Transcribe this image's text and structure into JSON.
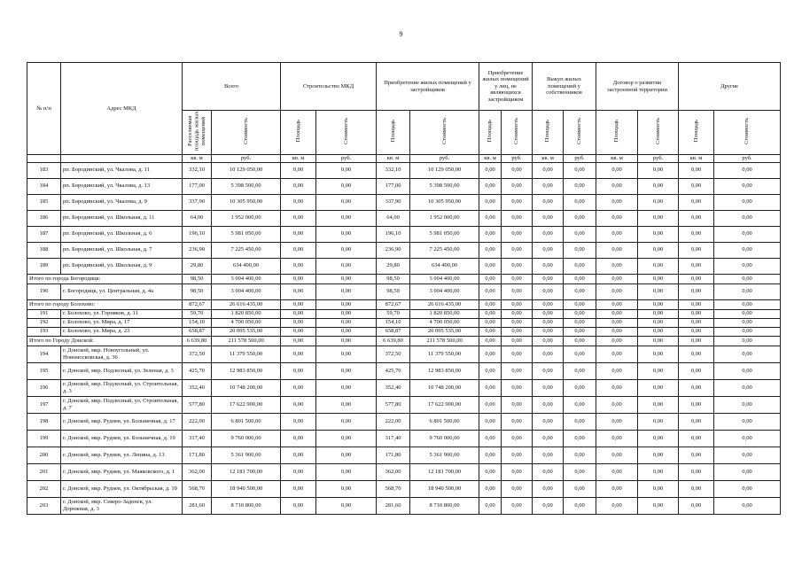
{
  "page_number": "9",
  "header": {
    "num": "№ п/п",
    "address": "Адрес МКД",
    "groups": [
      "Всего",
      "Строительство МКД",
      "Приобретение жилых помещений у застройщиков",
      "Приобретение жилых помещений у лиц, не являющихся застройщиком",
      "Выкуп жилых помещений у собственников",
      "Договор о развитии застроенной территории",
      "Другие"
    ],
    "subs": [
      "Расселяемая площадь жилых помещений",
      "Стоимость",
      "Площадь",
      "Стоимость",
      "Площадь",
      "Стоимость",
      "Площадь",
      "Стоимость",
      "Площадь",
      "Стоимость",
      "Площадь",
      "Стоимость",
      "Площадь",
      "Стоимость"
    ],
    "units": [
      "кв. м",
      "руб.",
      "кв. м",
      "руб.",
      "кв. м",
      "руб.",
      "кв. м",
      "руб.",
      "кв. м",
      "руб.",
      "кв. м",
      "руб.",
      "кв. м",
      "руб."
    ]
  },
  "table": {
    "rows": [
      {
        "num": "183",
        "address": "рп. Бородинский, ул. Чкалова, д. 11",
        "cells": [
          "332,10",
          "10 129 050,00",
          "0,00",
          "0,00",
          "332,10",
          "10 129 050,00",
          "0,00",
          "0,00",
          "0,00",
          "0,00",
          "0,00",
          "0,00",
          "0,00",
          "0,00"
        ]
      },
      {
        "num": "184",
        "address": "рп. Бородинский, ул. Чкалова, д. 13",
        "cells": [
          "177,00",
          "5 398 500,00",
          "0,00",
          "0,00",
          "177,00",
          "5 398 500,00",
          "0,00",
          "0,00",
          "0,00",
          "0,00",
          "0,00",
          "0,00",
          "0,00",
          "0,00"
        ]
      },
      {
        "num": "185",
        "address": "рп. Бородинский, ул. Чкалова, д. 9",
        "cells": [
          "337,90",
          "10 305 950,00",
          "0,00",
          "0,00",
          "337,90",
          "10 305 950,00",
          "0,00",
          "0,00",
          "0,00",
          "0,00",
          "0,00",
          "0,00",
          "0,00",
          "0,00"
        ]
      },
      {
        "num": "186",
        "address": "рп. Бородинский, ул. Школьная, д. 11",
        "cells": [
          "64,00",
          "1 952 000,00",
          "0,00",
          "0,00",
          "64,00",
          "1 952 000,00",
          "0,00",
          "0,00",
          "0,00",
          "0,00",
          "0,00",
          "0,00",
          "0,00",
          "0,00"
        ]
      },
      {
        "num": "187",
        "address": "рп. Бородинский, ул. Школьная, д. 6",
        "cells": [
          "196,10",
          "5 981 050,00",
          "0,00",
          "0,00",
          "196,10",
          "5 981 050,00",
          "0,00",
          "0,00",
          "0,00",
          "0,00",
          "0,00",
          "0,00",
          "0,00",
          "0,00"
        ]
      },
      {
        "num": "188",
        "address": "рп. Бородинский, ул. Школьная, д. 7",
        "cells": [
          "236,90",
          "7 225 450,00",
          "0,00",
          "0,00",
          "236,90",
          "7 225 450,00",
          "0,00",
          "0,00",
          "0,00",
          "0,00",
          "0,00",
          "0,00",
          "0,00",
          "0,00"
        ]
      },
      {
        "num": "189",
        "address": "рп. Бородинский, ул. Школьная, д. 9",
        "cells": [
          "29,80",
          "634 400,00",
          "0,00",
          "0,00",
          "29,80",
          "634 400,00",
          "0,00",
          "0,00",
          "0,00",
          "0,00",
          "0,00",
          "0,00",
          "0,00",
          "0,00"
        ]
      },
      {
        "label": "Итого по города Богородицк:",
        "cells": [
          "98,50",
          "3 004 400,00",
          "0,00",
          "0,00",
          "98,50",
          "3 004 400,00",
          "0,00",
          "0,00",
          "0,00",
          "0,00",
          "0,00",
          "0,00",
          "0,00",
          "0,00"
        ]
      },
      {
        "num": "190",
        "address": "г. Богородицк, ул. Центральная, д. 4а",
        "cells": [
          "98,50",
          "3 004 400,00",
          "0,00",
          "0,00",
          "98,50",
          "3 004 400,00",
          "0,00",
          "0,00",
          "0,00",
          "0,00",
          "0,00",
          "0,00",
          "0,00",
          "0,00"
        ]
      },
      {
        "label": "Итого по городу Болохово:",
        "cells": [
          "872,67",
          "26 616 435,00",
          "0,00",
          "0,00",
          "872,67",
          "26 616 435,00",
          "0,00",
          "0,00",
          "0,00",
          "0,00",
          "0,00",
          "0,00",
          "0,00",
          "0,00"
        ]
      },
      {
        "num": "191",
        "address": "г. Болохово, ул. Горняков, д. 11",
        "cells": [
          "59,70",
          "1 820 850,00",
          "0,00",
          "0,00",
          "59,70",
          "1 820 850,00",
          "0,00",
          "0,00",
          "0,00",
          "0,00",
          "0,00",
          "0,00",
          "0,00",
          "0,00"
        ]
      },
      {
        "num": "192",
        "address": "г. Болохово, ул. Мира, д. 17",
        "cells": [
          "154,10",
          "4 700 050,00",
          "0,00",
          "0,00",
          "154,10",
          "4 700 050,00",
          "0,00",
          "0,00",
          "0,00",
          "0,00",
          "0,00",
          "0,00",
          "0,00",
          "0,00"
        ]
      },
      {
        "num": "193",
        "address": "г. Болохово, ул. Мира, д. 23",
        "cells": [
          "658,87",
          "20 095 535,00",
          "0,00",
          "0,00",
          "658,87",
          "20 095 535,00",
          "0,00",
          "0,00",
          "0,00",
          "0,00",
          "0,00",
          "0,00",
          "0,00",
          "0,00"
        ]
      },
      {
        "label": "Итого по Городу Донской:",
        "cells": [
          "6 639,80",
          "211 578 500,00",
          "0,00",
          "0,00",
          "6 639,80",
          "211 578 500,00",
          "0,00",
          "0,00",
          "0,00",
          "0,00",
          "0,00",
          "0,00",
          "0,00",
          "0,00"
        ]
      },
      {
        "num": "194",
        "address": "г. Донской, мкр. Новоугольный, ул. Новомосковская, д. 36",
        "cells": [
          "372,50",
          "11 379 550,00",
          "0,00",
          "0,00",
          "372,50",
          "11 379 550,00",
          "0,00",
          "0,00",
          "0,00",
          "0,00",
          "0,00",
          "0,00",
          "0,00",
          "0,00"
        ]
      },
      {
        "num": "195",
        "address": "г. Донской, мкр. Подлесный, ул. Зеленая, д. 3",
        "cells": [
          "425,70",
          "12 983 850,00",
          "0,00",
          "0,00",
          "425,70",
          "12 983 850,00",
          "0,00",
          "0,00",
          "0,00",
          "0,00",
          "0,00",
          "0,00",
          "0,00",
          "0,00"
        ]
      },
      {
        "num": "196",
        "address": "г. Донской, мкр. Подлесный, ул. Строительная, д. 3",
        "cells": [
          "352,40",
          "10 748 200,00",
          "0,00",
          "0,00",
          "352,40",
          "10 748 200,00",
          "0,00",
          "0,00",
          "0,00",
          "0,00",
          "0,00",
          "0,00",
          "0,00",
          "0,00"
        ]
      },
      {
        "num": "197",
        "address": "г. Донской, мкр. Подлесный, ул. Строительная, д. 7",
        "cells": [
          "577,80",
          "17 622 900,00",
          "0,00",
          "0,00",
          "577,80",
          "17 622 900,00",
          "0,00",
          "0,00",
          "0,00",
          "0,00",
          "0,00",
          "0,00",
          "0,00",
          "0,00"
        ]
      },
      {
        "num": "198",
        "address": "г. Донской, мкр. Руднев, ул. Больничная, д. 17",
        "cells": [
          "222,00",
          "6 801 500,00",
          "0,00",
          "0,00",
          "222,00",
          "6 801 500,00",
          "0,00",
          "0,00",
          "0,00",
          "0,00",
          "0,00",
          "0,00",
          "0,00",
          "0,00"
        ]
      },
      {
        "num": "199",
        "address": "г. Донской, мкр. Руднев, ул. Больничная, д. 19",
        "cells": [
          "317,40",
          "9 760 000,00",
          "0,00",
          "0,00",
          "317,40",
          "9 760 000,00",
          "0,00",
          "0,00",
          "0,00",
          "0,00",
          "0,00",
          "0,00",
          "0,00",
          "0,00"
        ]
      },
      {
        "num": "200",
        "address": "г. Донской, мкр. Руднев, ул. Ленина, д. 13",
        "cells": [
          "171,80",
          "5 361 900,00",
          "0,00",
          "0,00",
          "171,80",
          "5 361 900,00",
          "0,00",
          "0,00",
          "0,00",
          "0,00",
          "0,00",
          "0,00",
          "0,00",
          "0,00"
        ]
      },
      {
        "num": "201",
        "address": "г. Донской, мкр. Руднев, ул. Маяковского, д. 1",
        "cells": [
          "362,00",
          "12 181 700,00",
          "0,00",
          "0,00",
          "362,00",
          "12 181 700,00",
          "0,00",
          "0,00",
          "0,00",
          "0,00",
          "0,00",
          "0,00",
          "0,00",
          "0,00"
        ]
      },
      {
        "num": "202",
        "address": "г. Донской, мкр. Руднев, ул. Октябрьская, д. 10",
        "cells": [
          "568,70",
          "18 940 500,00",
          "0,00",
          "0,00",
          "568,70",
          "18 940 500,00",
          "0,00",
          "0,00",
          "0,00",
          "0,00",
          "0,00",
          "0,00",
          "0,00",
          "0,00"
        ]
      },
      {
        "num": "203",
        "address": "г. Донской, мкр. Северо-Задонск, ул. Дорожная, д. 3",
        "cells": [
          "281,60",
          "8 710 800,00",
          "0,00",
          "0,00",
          "281,60",
          "8 710 800,00",
          "0,00",
          "0,00",
          "0,00",
          "0,00",
          "0,00",
          "0,00",
          "0,00",
          "0,00"
        ]
      }
    ]
  }
}
